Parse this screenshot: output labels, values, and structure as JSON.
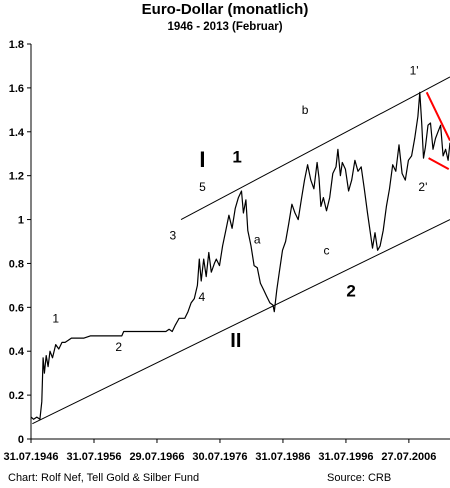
{
  "chart_data": {
    "type": "line",
    "title": "Euro-Dollar (monatlich)",
    "subtitle": "1946 -  2013 (Februar)",
    "ylim": [
      0,
      1.8
    ],
    "y_ticks": [
      "0",
      "0.2",
      "0.4",
      "0.6",
      "0.8",
      "1",
      "1.2",
      "1.4",
      "1.6",
      "1.8"
    ],
    "x_tick_labels": [
      "31.07.1946",
      "31.07.1956",
      "29.07.1966",
      "30.07.1976",
      "31.07.1986",
      "31.07.1996",
      "27.07.2006"
    ],
    "x_tick_years": [
      1946.58,
      1956.58,
      1966.58,
      1976.58,
      1986.58,
      1996.58,
      2006.57
    ],
    "xlim": [
      1946.58,
      2013.1
    ],
    "grid": false,
    "series": [
      {
        "color": "#000000",
        "x": [
          1946.6,
          1947.0,
          1947.5,
          1948.0,
          1948.3,
          1948.5,
          1948.7,
          1949.0,
          1949.3,
          1949.6,
          1950.0,
          1950.5,
          1951.0,
          1951.5,
          1952.0,
          1952.5,
          1953.0,
          1954.0,
          1955.0,
          1956.0,
          1957.0,
          1958.0,
          1959.0,
          1960.0,
          1961.0,
          1961.3,
          1962.0,
          1963.0,
          1964.0,
          1965.0,
          1966.0,
          1967.0,
          1967.5,
          1968.0,
          1968.5,
          1969.0,
          1969.5,
          1969.9,
          1970.1,
          1971.0,
          1971.5,
          1972.0,
          1972.5,
          1973.0,
          1973.3,
          1973.6,
          1974.0,
          1974.4,
          1974.8,
          1975.2,
          1975.7,
          1976.0,
          1976.5,
          1977.0,
          1977.5,
          1978.0,
          1978.5,
          1979.0,
          1979.5,
          1980.0,
          1980.3,
          1980.7,
          1981.0,
          1981.5,
          1982.0,
          1982.5,
          1983.0,
          1983.5,
          1984.0,
          1984.5,
          1985.0,
          1985.2,
          1985.6,
          1986.0,
          1986.5,
          1987.0,
          1987.5,
          1988.0,
          1988.5,
          1989.0,
          1989.5,
          1990.0,
          1990.5,
          1991.0,
          1991.5,
          1992.0,
          1992.3,
          1992.6,
          1993.0,
          1993.5,
          1994.0,
          1994.5,
          1995.0,
          1995.3,
          1995.7,
          1996.0,
          1996.5,
          1997.0,
          1997.5,
          1998.0,
          1998.5,
          1999.0,
          1999.5,
          2000.0,
          2000.4,
          2000.8,
          2001.2,
          2001.6,
          2002.0,
          2002.5,
          2003.0,
          2003.5,
          2004.0,
          2004.5,
          2005.0,
          2005.5,
          2006.0,
          2006.5,
          2007.0,
          2007.5,
          2008.0,
          2008.3,
          2008.6,
          2008.9,
          2009.2,
          2009.6,
          2010.0,
          2010.4,
          2010.8,
          2011.2,
          2011.6,
          2012.0,
          2012.4,
          2012.8,
          2013.1
        ],
        "y": [
          0.1,
          0.09,
          0.1,
          0.09,
          0.17,
          0.37,
          0.3,
          0.38,
          0.33,
          0.4,
          0.37,
          0.43,
          0.41,
          0.44,
          0.44,
          0.45,
          0.46,
          0.46,
          0.46,
          0.47,
          0.47,
          0.47,
          0.47,
          0.47,
          0.47,
          0.49,
          0.49,
          0.49,
          0.49,
          0.49,
          0.49,
          0.49,
          0.49,
          0.49,
          0.5,
          0.49,
          0.52,
          0.54,
          0.55,
          0.55,
          0.58,
          0.62,
          0.64,
          0.7,
          0.82,
          0.72,
          0.82,
          0.74,
          0.85,
          0.76,
          0.8,
          0.82,
          0.79,
          0.88,
          0.95,
          1.02,
          0.96,
          1.05,
          1.1,
          1.13,
          1.03,
          1.09,
          0.95,
          0.88,
          0.79,
          0.78,
          0.71,
          0.68,
          0.65,
          0.62,
          0.61,
          0.58,
          0.68,
          0.76,
          0.86,
          0.9,
          0.98,
          1.07,
          1.03,
          1.0,
          1.09,
          1.18,
          1.25,
          1.18,
          1.14,
          1.26,
          1.19,
          1.06,
          1.1,
          1.04,
          1.1,
          1.21,
          1.24,
          1.32,
          1.2,
          1.26,
          1.23,
          1.13,
          1.18,
          1.27,
          1.22,
          1.24,
          1.14,
          1.03,
          0.95,
          0.87,
          0.94,
          0.86,
          0.88,
          0.95,
          1.06,
          1.14,
          1.25,
          1.22,
          1.34,
          1.21,
          1.18,
          1.27,
          1.29,
          1.37,
          1.47,
          1.58,
          1.44,
          1.28,
          1.33,
          1.43,
          1.44,
          1.32,
          1.37,
          1.4,
          1.43,
          1.29,
          1.32,
          1.27,
          1.35
        ]
      }
    ],
    "trend_lines": [
      {
        "color": "#000000",
        "x": [
          1946.8,
          2013.1
        ],
        "y": [
          0.07,
          1.0
        ]
      },
      {
        "color": "#000000",
        "x": [
          1970.4,
          2013.1
        ],
        "y": [
          1.0,
          1.65
        ]
      },
      {
        "color": "#ff0000",
        "x": [
          2009.4,
          2013.1
        ],
        "y": [
          1.58,
          1.36
        ]
      },
      {
        "color": "#ff0000",
        "x": [
          2009.7,
          2012.9
        ],
        "y": [
          1.28,
          1.23
        ]
      }
    ],
    "annotations": [
      {
        "text": "1",
        "x": 1950.5,
        "y": 0.53,
        "size": 12,
        "bold": false
      },
      {
        "text": "2",
        "x": 1960.5,
        "y": 0.4,
        "size": 12,
        "bold": false
      },
      {
        "text": "3",
        "x": 1969.1,
        "y": 0.91,
        "size": 12,
        "bold": false
      },
      {
        "text": "4",
        "x": 1973.7,
        "y": 0.63,
        "size": 12,
        "bold": false
      },
      {
        "text": "5",
        "x": 1973.8,
        "y": 1.13,
        "size": 12,
        "bold": false
      },
      {
        "text": "I",
        "x": 1973.8,
        "y": 1.24,
        "size": 22,
        "bold": true
      },
      {
        "text": "1",
        "x": 1979.3,
        "y": 1.26,
        "size": 17,
        "bold": true
      },
      {
        "text": "II",
        "x": 1979.1,
        "y": 0.42,
        "size": 20,
        "bold": true
      },
      {
        "text": "a",
        "x": 1982.5,
        "y": 0.89,
        "size": 12,
        "bold": false
      },
      {
        "text": "b",
        "x": 1990.1,
        "y": 1.48,
        "size": 12,
        "bold": false
      },
      {
        "text": "c",
        "x": 1993.5,
        "y": 0.84,
        "size": 12,
        "bold": false
      },
      {
        "text": "2",
        "x": 1997.4,
        "y": 0.65,
        "size": 17,
        "bold": true
      },
      {
        "text": "1'",
        "x": 2007.4,
        "y": 1.66,
        "size": 12,
        "bold": false
      },
      {
        "text": "2'",
        "x": 2008.8,
        "y": 1.13,
        "size": 12,
        "bold": false
      }
    ]
  },
  "footer": {
    "source_left": "Chart: Rolf Nef, Tell Gold & Silber Fund",
    "source_right": "Source: CRB"
  }
}
